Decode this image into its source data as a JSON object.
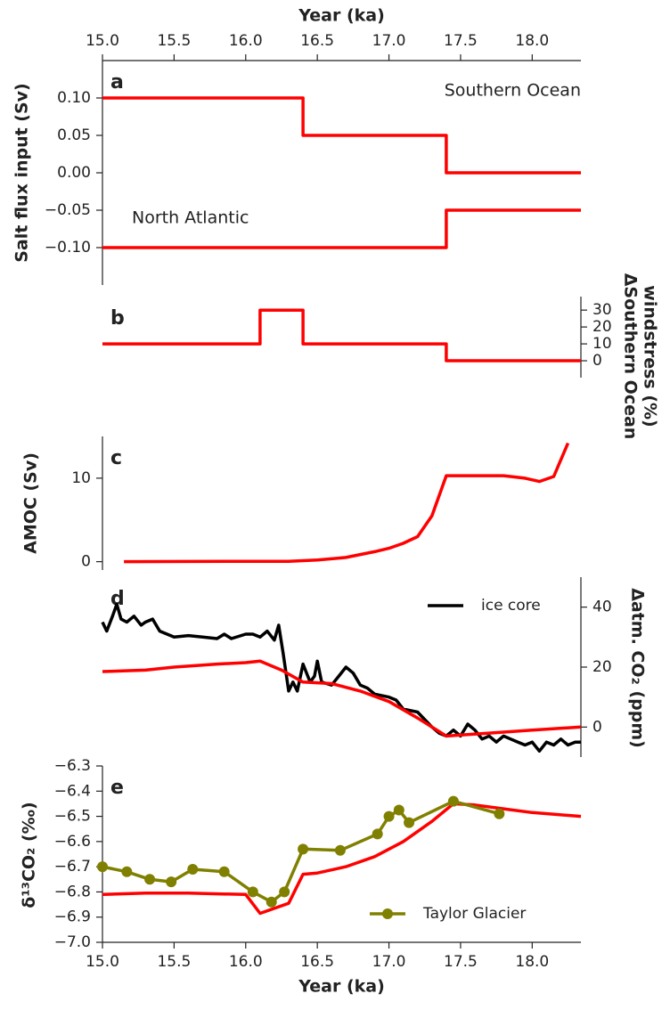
{
  "chart_data": [
    {
      "type": "line",
      "panel_label": "a",
      "xlabel": "Year (ka)",
      "xaxis_side": "top",
      "xlim": [
        15,
        18.34
      ],
      "xticks": [
        {
          "value": 15,
          "label": "15.0"
        },
        {
          "value": 15.5,
          "label": "15.5"
        },
        {
          "value": 16,
          "label": "16.0"
        },
        {
          "value": 16.5,
          "label": "16.5"
        },
        {
          "value": 17,
          "label": "17.0"
        },
        {
          "value": 17.5,
          "label": "17.5"
        },
        {
          "value": 18,
          "label": "18.0"
        }
      ],
      "ylabel": "Salt flux input (Sv)",
      "yaxis_side": "left",
      "ylim": [
        -0.15,
        0.15
      ],
      "yticks": [
        {
          "value": 0.1,
          "label": "0.10"
        },
        {
          "value": 0.05,
          "label": "0.05"
        },
        {
          "value": 0,
          "label": "0.00"
        },
        {
          "value": -0.05,
          "label": "−0.05"
        },
        {
          "value": -0.1,
          "label": "−0.10"
        }
      ],
      "series": [
        {
          "name": "Southern Ocean",
          "color": "#ff0000",
          "x": [
            15,
            16.4,
            16.4,
            17.4,
            17.4,
            18.34
          ],
          "values": [
            0.1,
            0.1,
            0.05,
            0.05,
            0,
            0
          ]
        },
        {
          "name": "North Atlantic",
          "color": "#ff0000",
          "x": [
            15,
            17.4,
            17.4,
            18.34
          ],
          "values": [
            -0.1,
            -0.1,
            -0.05,
            -0.05
          ]
        }
      ]
    },
    {
      "type": "line",
      "panel_label": "b",
      "xlim": [
        15,
        18.34
      ],
      "ylabel": [
        "ΔSouthern Ocean",
        "windstress (%)"
      ],
      "yaxis_side": "right",
      "ylim": [
        -10,
        38
      ],
      "yticks": [
        0,
        10,
        20,
        30
      ],
      "series": [
        {
          "color": "#ff0000",
          "x": [
            15,
            16.1,
            16.1,
            16.4,
            16.4,
            17.4,
            17.4,
            18.34
          ],
          "values": [
            10,
            10,
            30,
            30,
            10,
            10,
            0,
            0
          ]
        }
      ]
    },
    {
      "type": "line",
      "panel_label": "c",
      "xlim": [
        15,
        18.34
      ],
      "ylabel": "AMOC (Sv)",
      "yaxis_side": "left",
      "ylim": [
        -1,
        15
      ],
      "yticks": [
        0,
        10
      ],
      "series": [
        {
          "color": "#ff0000",
          "x": [
            15.15,
            16.0,
            16.3,
            16.5,
            16.7,
            16.9,
            17.0,
            17.1,
            17.2,
            17.3,
            17.4,
            17.6,
            17.8,
            17.95,
            18.05,
            18.15,
            18.25
          ],
          "values": [
            0,
            0.05,
            0.05,
            0.2,
            0.5,
            1.2,
            1.6,
            2.2,
            3,
            5.5,
            10.3,
            10.3,
            10.3,
            10,
            9.6,
            10.2,
            14.2
          ]
        }
      ]
    },
    {
      "type": "line",
      "panel_label": "d",
      "xlim": [
        15,
        18.34
      ],
      "ylabel": "Δatm. CO₂ (ppm)",
      "yaxis_side": "right",
      "ylim": [
        -10,
        50
      ],
      "yticks": [
        0,
        20,
        40
      ],
      "legend": "upper right",
      "series": [
        {
          "name": "ice core",
          "color": "#000000",
          "x": [
            15.0,
            15.03,
            15.07,
            15.1,
            15.13,
            15.17,
            15.22,
            15.27,
            15.3,
            15.35,
            15.4,
            15.5,
            15.6,
            15.7,
            15.8,
            15.85,
            15.9,
            16.0,
            16.05,
            16.1,
            16.15,
            16.2,
            16.23,
            16.26,
            16.3,
            16.33,
            16.36,
            16.4,
            16.45,
            16.48,
            16.5,
            16.53,
            16.6,
            16.65,
            16.7,
            16.75,
            16.8,
            16.85,
            16.9,
            17.0,
            17.05,
            17.1,
            17.2,
            17.3,
            17.35,
            17.4,
            17.45,
            17.5,
            17.55,
            17.6,
            17.65,
            17.7,
            17.75,
            17.8,
            17.85,
            17.9,
            17.95,
            18.0,
            18.05,
            18.1,
            18.15,
            18.2,
            18.25,
            18.3,
            18.34
          ],
          "values": [
            35,
            32,
            37,
            41,
            36,
            35,
            37,
            34,
            35,
            36,
            32,
            30,
            30.5,
            30,
            29.5,
            31,
            29.5,
            31,
            31,
            30,
            32,
            29,
            34,
            25,
            12,
            15,
            12,
            21,
            15,
            17,
            22,
            15,
            14,
            17,
            20,
            18,
            14,
            13,
            11,
            10,
            9,
            6,
            5,
            0,
            -2,
            -3,
            -1,
            -3,
            1,
            -1,
            -4,
            -3,
            -5,
            -3,
            -4,
            -5,
            -6,
            -5,
            -8,
            -5,
            -6,
            -4,
            -6,
            -5,
            -5
          ]
        },
        {
          "color": "#ff0000",
          "x": [
            15,
            15.3,
            15.5,
            15.8,
            16,
            16.1,
            16.25,
            16.4,
            16.6,
            16.8,
            17.0,
            17.2,
            17.4,
            17.7,
            18.0,
            18.34
          ],
          "values": [
            18.5,
            19,
            20,
            21,
            21.5,
            22,
            19,
            15,
            14.5,
            12,
            8.5,
            3,
            -3,
            -2,
            -1,
            0
          ]
        }
      ]
    },
    {
      "type": "line",
      "panel_label": "e",
      "xlabel": "Year (ka)",
      "xaxis_side": "bottom",
      "xlim": [
        15,
        18.34
      ],
      "xticks": [
        {
          "value": 15,
          "label": "15.0"
        },
        {
          "value": 15.5,
          "label": "15.5"
        },
        {
          "value": 16,
          "label": "16.0"
        },
        {
          "value": 16.5,
          "label": "16.5"
        },
        {
          "value": 17,
          "label": "17.0"
        },
        {
          "value": 17.5,
          "label": "17.5"
        },
        {
          "value": 18,
          "label": "18.0"
        }
      ],
      "ylabel": "δ¹³CO₂ (‰)",
      "yaxis_side": "left",
      "ylim": [
        -7.0,
        -6.3
      ],
      "legend": "lower right",
      "yticks": [
        {
          "value": -6.3,
          "label": "−6.3"
        },
        {
          "value": -6.4,
          "label": "−6.4"
        },
        {
          "value": -6.5,
          "label": "−6.5"
        },
        {
          "value": -6.6,
          "label": "−6.6"
        },
        {
          "value": -6.7,
          "label": "−6.7"
        },
        {
          "value": -6.8,
          "label": "−6.8"
        },
        {
          "value": -6.9,
          "label": "−6.9"
        },
        {
          "value": -7.0,
          "label": "−7.0"
        }
      ],
      "series": [
        {
          "color": "#ff0000",
          "x": [
            15,
            15.3,
            15.6,
            16.0,
            16.1,
            16.3,
            16.4,
            16.5,
            16.7,
            16.9,
            17.1,
            17.3,
            17.45,
            17.6,
            17.8,
            18.0,
            18.34
          ],
          "values": [
            -6.81,
            -6.805,
            -6.805,
            -6.81,
            -6.885,
            -6.845,
            -6.73,
            -6.725,
            -6.7,
            -6.66,
            -6.6,
            -6.52,
            -6.45,
            -6.455,
            -6.47,
            -6.485,
            -6.5
          ]
        },
        {
          "name": "Taylor Glacier",
          "color": "#808000",
          "markers": true,
          "x": [
            15.0,
            15.17,
            15.33,
            15.48,
            15.63,
            15.85,
            16.05,
            16.18,
            16.27,
            16.4,
            16.66,
            16.92,
            17.0,
            17.07,
            17.14,
            17.45,
            17.77
          ],
          "values": [
            -6.7,
            -6.72,
            -6.75,
            -6.76,
            -6.71,
            -6.72,
            -6.8,
            -6.84,
            -6.8,
            -6.63,
            -6.635,
            -6.57,
            -6.5,
            -6.475,
            -6.525,
            -6.44,
            -6.49
          ]
        }
      ]
    }
  ]
}
